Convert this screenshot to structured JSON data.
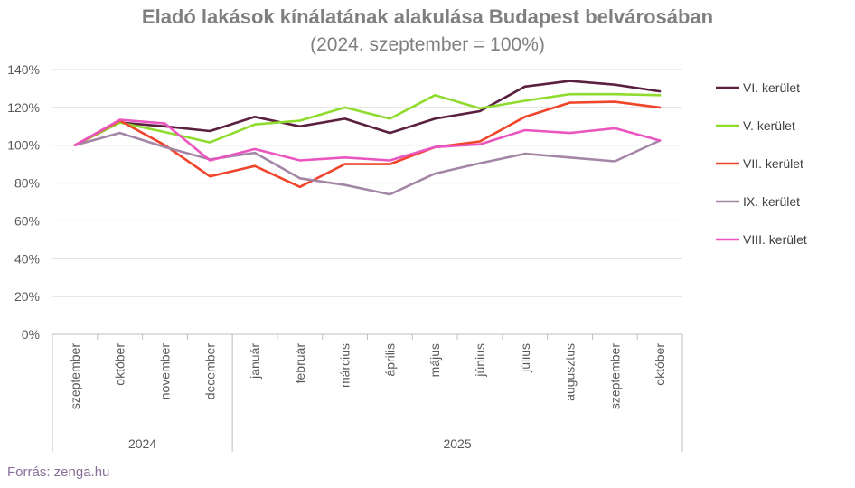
{
  "title": "Eladó lakások kínálatának alakulása Budapest belvárosában",
  "subtitle": "(2024. szeptember = 100%)",
  "source": "Forrás: zenga.hu",
  "chart_data": {
    "type": "line",
    "x": [
      "szeptember",
      "október",
      "november",
      "december",
      "január",
      "február",
      "március",
      "április",
      "május",
      "június",
      "július",
      "augusztus",
      "szeptember",
      "október"
    ],
    "year_groups": [
      {
        "label": "2024",
        "start": 0,
        "end": 3
      },
      {
        "label": "2025",
        "start": 4,
        "end": 13
      }
    ],
    "ylim": [
      0,
      140
    ],
    "yticks": [
      0,
      20,
      40,
      60,
      80,
      100,
      120,
      140
    ],
    "ytick_labels": [
      "0%",
      "20%",
      "40%",
      "60%",
      "80%",
      "100%",
      "120%",
      "140%"
    ],
    "grid": true,
    "legend": "right",
    "series": [
      {
        "name": "VI. kerület",
        "color": "#5b1f3f",
        "values": [
          100,
          112,
          110,
          107.5,
          115,
          110,
          114,
          106.5,
          114,
          118,
          131,
          134,
          132,
          128.5
        ]
      },
      {
        "name": "V. kerület",
        "color": "#8fdc2e",
        "values": [
          100,
          112,
          107,
          101.5,
          111,
          113,
          120,
          114,
          126.5,
          119.5,
          123.5,
          127,
          127,
          126.5
        ]
      },
      {
        "name": "VII. kerület",
        "color": "#f0442b",
        "values": [
          100,
          113,
          100,
          83.5,
          89,
          78,
          90,
          90,
          99,
          102,
          115,
          122.5,
          123,
          120
        ]
      },
      {
        "name": "IX. kerület",
        "color": "#a486a6",
        "values": [
          100,
          106.5,
          99,
          92.5,
          96,
          82.5,
          79,
          74,
          85,
          90.5,
          95.5,
          93.5,
          91.5,
          102.5
        ]
      },
      {
        "name": "VIII. kerület",
        "color": "#ea55c0",
        "values": [
          100,
          113.5,
          111.5,
          92,
          98,
          92,
          93.5,
          92,
          99,
          100.5,
          108,
          106.5,
          109,
          102.5
        ]
      }
    ]
  }
}
